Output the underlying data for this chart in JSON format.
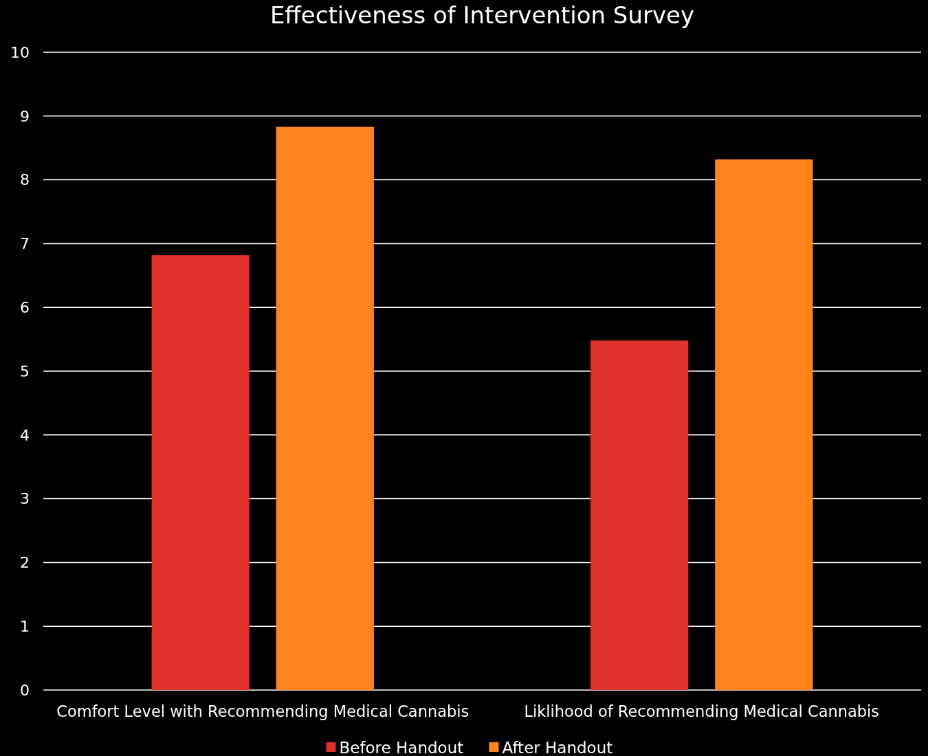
{
  "chart_data": {
    "type": "bar",
    "title": "Effectiveness of Intervention Survey",
    "categories": [
      "Comfort Level with Recommending Medical Cannabis",
      "Liklihood of Recommending Medical Cannabis"
    ],
    "series": [
      {
        "name": "Before Handout",
        "color": "#e0302a",
        "values": [
          6.82,
          5.48
        ]
      },
      {
        "name": "After Handout",
        "color": "#ff841c",
        "values": [
          8.83,
          8.32
        ]
      }
    ],
    "ylim": [
      0,
      10
    ],
    "yticks": [
      0,
      1,
      2,
      3,
      4,
      5,
      6,
      7,
      8,
      9,
      10
    ],
    "grid": "y",
    "legend": "bottom"
  }
}
